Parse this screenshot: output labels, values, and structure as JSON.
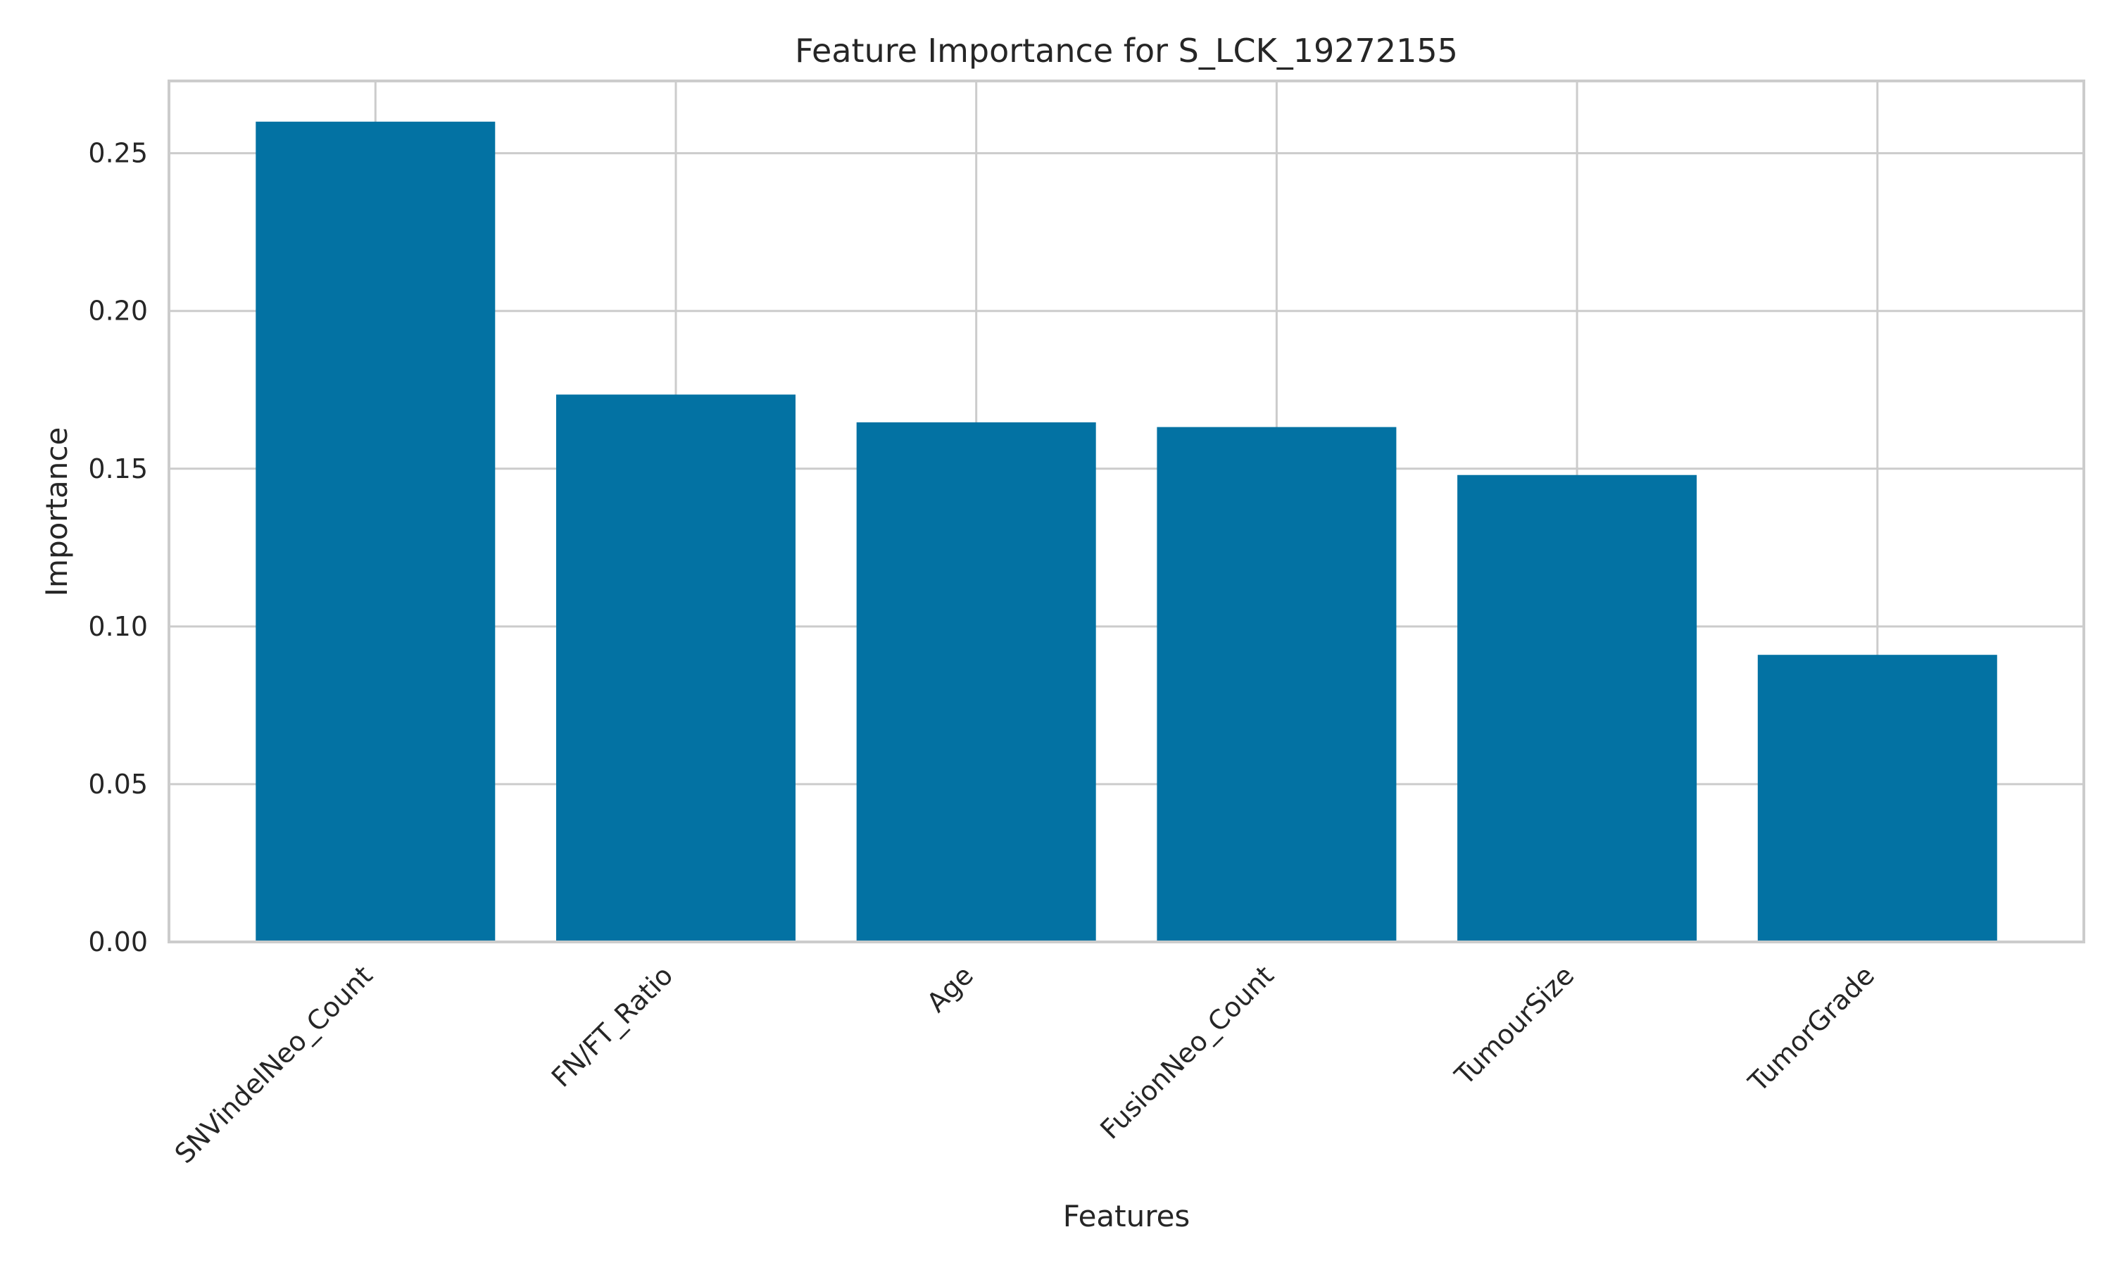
{
  "chart_data": {
    "type": "bar",
    "title": "Feature Importance for S_LCK_19272155",
    "xlabel": "Features",
    "ylabel": "Importance",
    "categories": [
      "SNVindelNeo_Count",
      "FN/FT_Ratio",
      "Age",
      "FusionNeo_Count",
      "TumourSize",
      "TumorGrade"
    ],
    "values": [
      0.26,
      0.1735,
      0.1647,
      0.1632,
      0.148,
      0.091
    ],
    "ylim": [
      0,
      0.2729
    ],
    "yticks": [
      0.0,
      0.05,
      0.1,
      0.15,
      0.2,
      0.25
    ],
    "ytick_labels": [
      "0.00",
      "0.05",
      "0.10",
      "0.15",
      "0.20",
      "0.25"
    ],
    "bar_color": "#0372a3",
    "grid": true,
    "legend": "none"
  }
}
